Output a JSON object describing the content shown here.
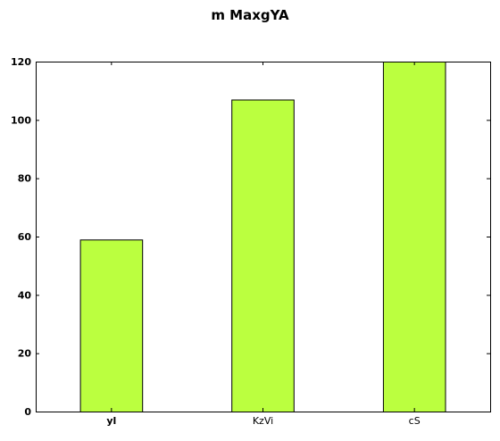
{
  "chart_data": {
    "type": "bar",
    "title": "m MaxgYA",
    "categories": [
      "yl",
      "KzVi",
      "cS"
    ],
    "values": [
      59,
      107,
      120
    ],
    "ylim": [
      0,
      120
    ],
    "yticks": [
      0,
      20,
      40,
      60,
      80,
      100,
      120
    ],
    "xlabel": "",
    "ylabel": "",
    "grid": false,
    "colors": {
      "bar_fill": "#bbff3f",
      "bar_edge": "#000000",
      "axes": "#000000",
      "background": "#ffffff"
    }
  }
}
